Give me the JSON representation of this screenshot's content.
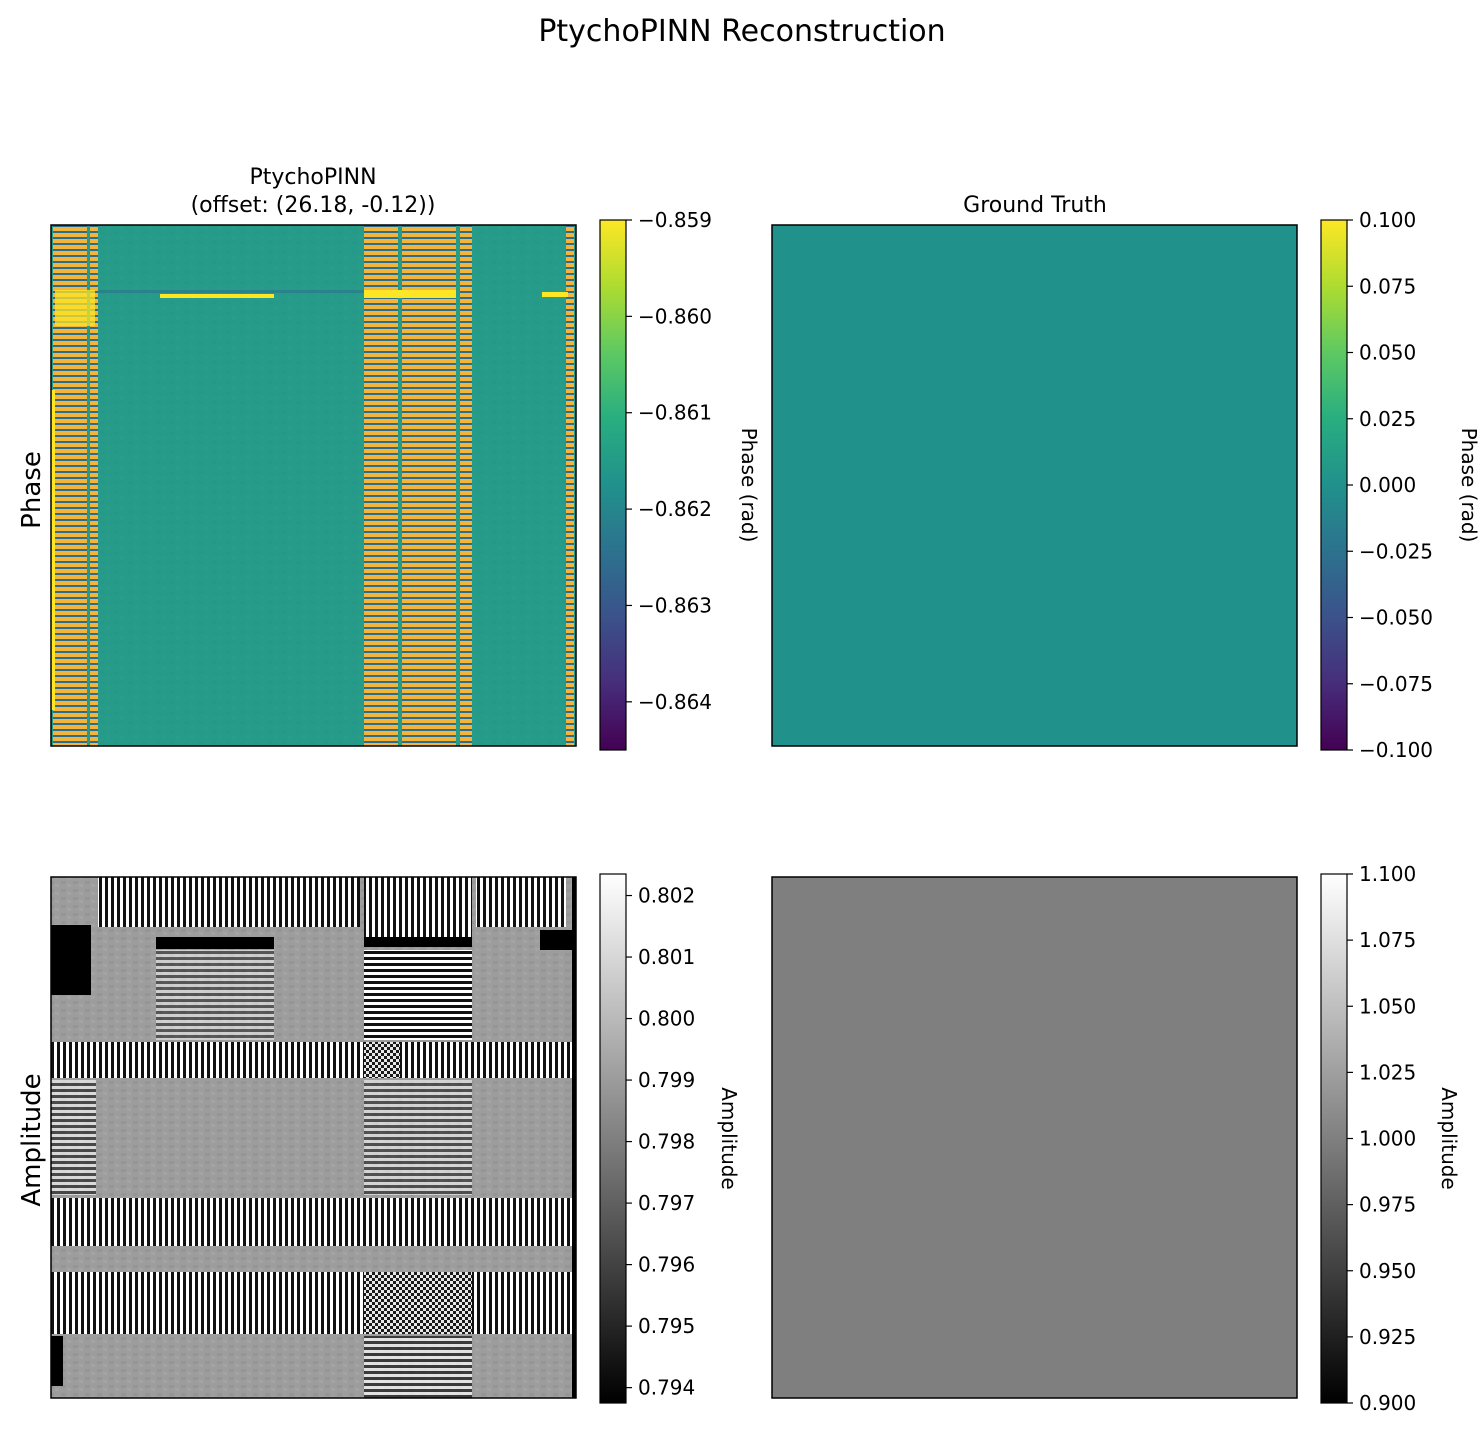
{
  "figure": {
    "title": "PtychoPINN Reconstruction"
  },
  "row_labels": [
    "Phase",
    "Amplitude"
  ],
  "chart_data": [
    {
      "type": "heatmap",
      "title": "PtychoPINN\n(offset: (26.18, -0.12))",
      "colormap": "viridis",
      "value_range": [
        -0.8645,
        -0.859
      ],
      "colorbar": {
        "label": "Phase (rad)",
        "ticks": [
          "−0.859",
          "−0.860",
          "−0.861",
          "−0.862",
          "−0.863",
          "−0.864"
        ],
        "tick_values": [
          -0.859,
          -0.86,
          -0.861,
          -0.862,
          -0.863,
          -0.864
        ]
      },
      "background_value": -0.8615
    },
    {
      "type": "heatmap",
      "title": "Ground Truth",
      "colormap": "viridis",
      "value_range": [
        -0.1,
        0.1
      ],
      "colorbar": {
        "label": "Phase (rad)",
        "ticks": [
          "0.100",
          "0.075",
          "0.050",
          "0.025",
          "0.000",
          "−0.025",
          "−0.050",
          "−0.075",
          "−0.100"
        ],
        "tick_values": [
          0.1,
          0.075,
          0.05,
          0.025,
          0.0,
          -0.025,
          -0.05,
          -0.075,
          -0.1
        ]
      },
      "uniform_value": 0.0
    },
    {
      "type": "heatmap",
      "title": "",
      "colormap": "gray",
      "value_range": [
        0.79375,
        0.80235
      ],
      "colorbar": {
        "label": "Amplitude",
        "ticks": [
          "0.802",
          "0.801",
          "0.800",
          "0.799",
          "0.798",
          "0.797",
          "0.796",
          "0.795",
          "0.794"
        ],
        "tick_values": [
          0.802,
          0.801,
          0.8,
          0.799,
          0.798,
          0.797,
          0.796,
          0.795,
          0.794
        ]
      },
      "background_value": 0.7991
    },
    {
      "type": "heatmap",
      "title": "",
      "colormap": "gray",
      "value_range": [
        0.9,
        1.1
      ],
      "colorbar": {
        "label": "Amplitude",
        "ticks": [
          "1.100",
          "1.075",
          "1.050",
          "1.025",
          "1.000",
          "0.975",
          "0.950",
          "0.925",
          "0.900"
        ],
        "tick_values": [
          1.1,
          1.075,
          1.05,
          1.025,
          1.0,
          0.975,
          0.95,
          0.925,
          0.9
        ]
      },
      "uniform_value": 1.0
    }
  ]
}
